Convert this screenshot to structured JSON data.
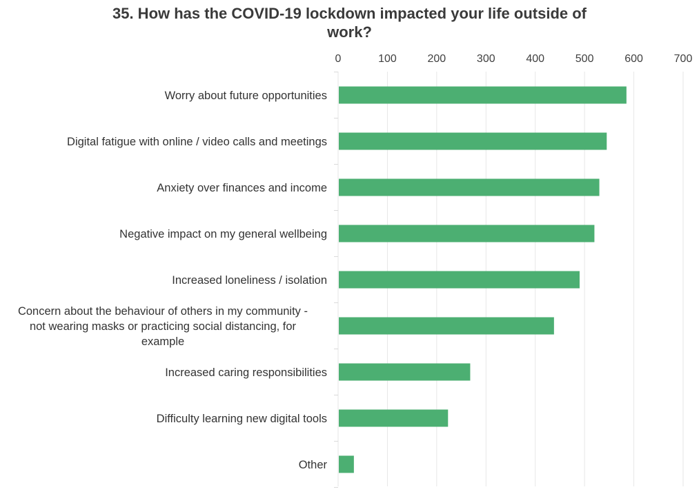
{
  "chart_data": {
    "type": "bar",
    "orientation": "horizontal",
    "title_lines": [
      "35. How has the COVID-19 lockdown impacted your life outside of",
      "work?"
    ],
    "categories": [
      [
        "Worry about future opportunities"
      ],
      [
        "Digital fatigue with online / video calls and meetings"
      ],
      [
        "Anxiety over finances and income"
      ],
      [
        "Negative impact on my general wellbeing"
      ],
      [
        "Increased loneliness / isolation"
      ],
      [
        "Concern about the behaviour of others in my community -",
        "not wearing masks or practicing social distancing, for",
        "example"
      ],
      [
        "Increased caring responsibilities"
      ],
      [
        "Difficulty learning new digital tools"
      ],
      [
        "Other"
      ]
    ],
    "values": [
      585,
      545,
      530,
      520,
      490,
      438,
      268,
      223,
      32
    ],
    "xlim": [
      0,
      700
    ],
    "x_ticks": [
      0,
      100,
      200,
      300,
      400,
      500,
      600,
      700
    ],
    "x_axis_position": "top",
    "grid": true,
    "bar_color": "#4caf72",
    "grid_color": "#e6e6e6"
  }
}
